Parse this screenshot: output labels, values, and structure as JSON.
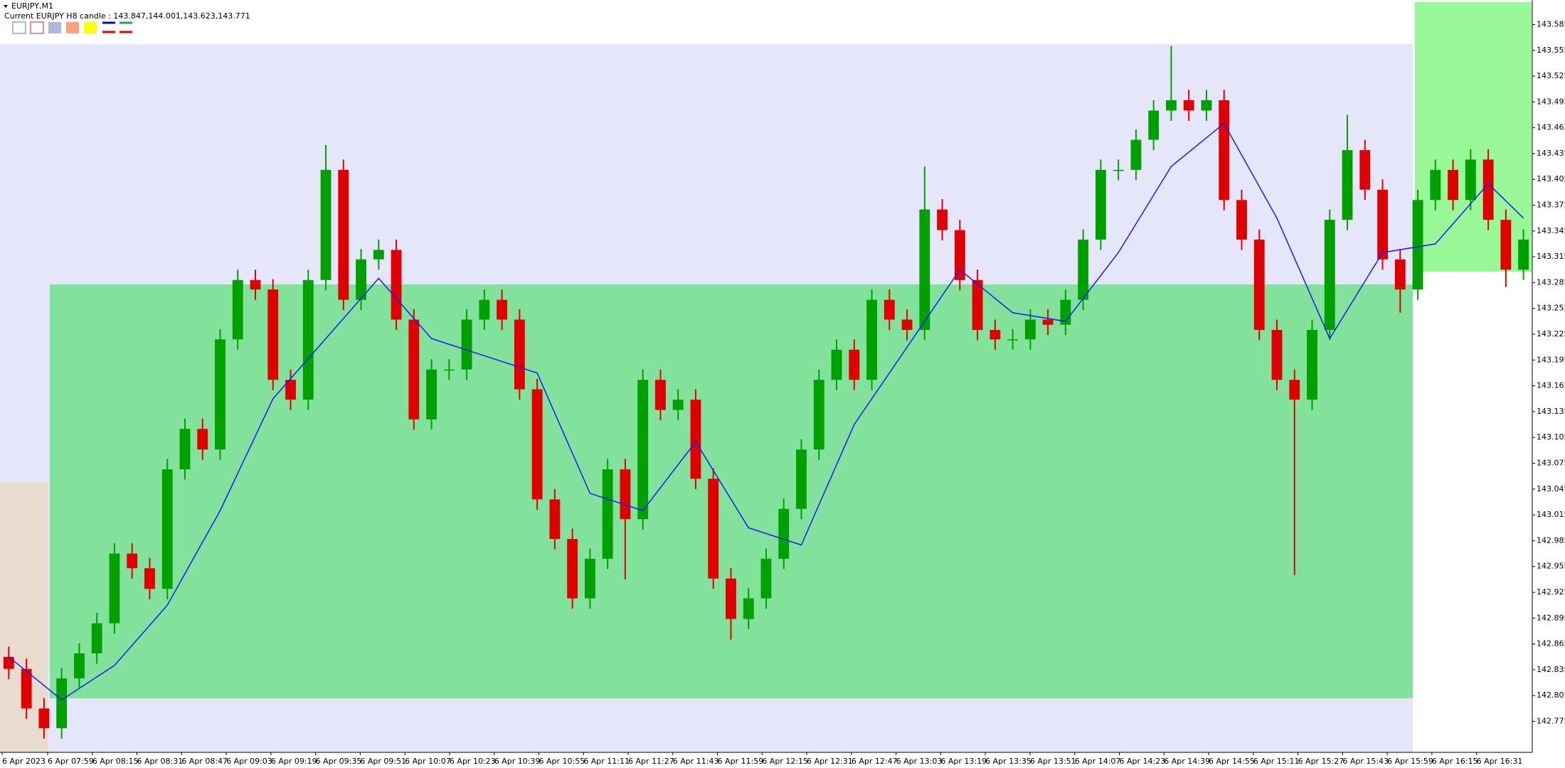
{
  "chart_data": {
    "type": "candlestick",
    "title": "EURJPY,M1",
    "subtitle": "Current EURJPY H8 candle : 143.847,144.001,143.623,143.771",
    "categories": [
      "6 Apr 2023",
      "6 Apr 07:59",
      "6 Apr 08:15",
      "6 Apr 08:31",
      "6 Apr 08:47",
      "6 Apr 09:03",
      "6 Apr 09:19",
      "6 Apr 09:35",
      "6 Apr 09:51",
      "6 Apr 10:07",
      "6 Apr 10:23",
      "6 Apr 10:39",
      "6 Apr 10:55",
      "6 Apr 11:11",
      "6 Apr 11:27",
      "6 Apr 11:43",
      "6 Apr 11:59",
      "6 Apr 12:15",
      "6 Apr 12:31",
      "6 Apr 12:47",
      "6 Apr 13:03",
      "6 Apr 13:19",
      "6 Apr 13:35",
      "6 Apr 13:51",
      "6 Apr 14:07",
      "6 Apr 14:23",
      "6 Apr 14:39",
      "6 Apr 14:55",
      "6 Apr 15:11",
      "6 Apr 15:27",
      "6 Apr 15:43",
      "6 Apr 15:59",
      "6 Apr 16:15",
      "6 Apr 16:31"
    ],
    "open": [
      142.85,
      142.836,
      142.79,
      142.767,
      142.825,
      142.854,
      142.889,
      142.97,
      142.953,
      142.929,
      143.068,
      143.115,
      143.091,
      143.219,
      143.288,
      143.277,
      143.172,
      143.149,
      143.288,
      143.416,
      143.265,
      143.312,
      143.323,
      143.242,
      143.126,
      143.184,
      143.184,
      143.242,
      143.265,
      143.242,
      143.161,
      143.033,
      142.987,
      142.918,
      142.964,
      143.068,
      143.01,
      143.172,
      143.137,
      143.149,
      143.057,
      142.941,
      142.894,
      142.918,
      142.964,
      143.022,
      143.091,
      143.172,
      143.207,
      143.172,
      143.265,
      143.242,
      143.23,
      143.37,
      143.346,
      143.288,
      143.23,
      143.219,
      143.219,
      143.242,
      143.236,
      143.265,
      143.335,
      143.416,
      143.416,
      143.451,
      143.485,
      143.497,
      143.485,
      143.497,
      143.381,
      143.335,
      143.23,
      143.172,
      143.149,
      143.23,
      143.358,
      143.439,
      143.393,
      143.312,
      143.277,
      143.381,
      143.416,
      143.381,
      143.428,
      143.358,
      143.3
    ],
    "high": [
      142.862,
      142.848,
      142.802,
      142.837,
      142.866,
      142.901,
      142.982,
      142.982,
      142.965,
      143.08,
      143.127,
      143.127,
      143.231,
      143.3,
      143.3,
      143.289,
      143.184,
      143.3,
      143.445,
      143.428,
      143.324,
      143.335,
      143.335,
      143.254,
      143.196,
      143.196,
      143.254,
      143.277,
      143.277,
      143.254,
      143.173,
      143.045,
      142.999,
      142.976,
      143.08,
      143.08,
      143.184,
      143.184,
      143.161,
      143.161,
      143.069,
      142.953,
      142.93,
      142.976,
      143.034,
      143.103,
      143.184,
      143.219,
      143.219,
      143.277,
      143.277,
      143.254,
      143.42,
      143.382,
      143.358,
      143.3,
      143.242,
      143.231,
      143.254,
      143.254,
      143.277,
      143.347,
      143.428,
      143.428,
      143.463,
      143.497,
      143.56,
      143.509,
      143.509,
      143.509,
      143.393,
      143.347,
      143.242,
      143.184,
      143.242,
      143.37,
      143.48,
      143.451,
      143.405,
      143.324,
      143.393,
      143.428,
      143.428,
      143.44,
      143.44,
      143.37,
      143.347
    ],
    "low": [
      142.824,
      142.778,
      142.755,
      142.755,
      142.813,
      142.842,
      142.877,
      142.941,
      142.917,
      142.917,
      143.056,
      143.079,
      143.079,
      143.207,
      143.265,
      143.16,
      143.137,
      143.137,
      143.276,
      143.253,
      143.253,
      143.3,
      143.23,
      143.114,
      143.114,
      143.172,
      143.172,
      143.23,
      143.23,
      143.149,
      143.021,
      142.975,
      142.906,
      142.906,
      142.952,
      142.94,
      142.998,
      143.125,
      143.125,
      143.045,
      142.929,
      142.87,
      142.882,
      142.906,
      142.952,
      143.01,
      143.079,
      143.16,
      143.16,
      143.16,
      143.23,
      143.218,
      143.218,
      143.334,
      143.276,
      143.218,
      143.207,
      143.207,
      143.207,
      143.224,
      143.224,
      143.253,
      143.323,
      143.404,
      143.404,
      143.439,
      143.473,
      143.473,
      143.473,
      143.369,
      143.323,
      143.218,
      143.16,
      142.945,
      143.137,
      143.218,
      143.346,
      143.381,
      143.3,
      143.25,
      143.265,
      143.369,
      143.369,
      143.369,
      143.346,
      143.28,
      143.288
    ],
    "close": [
      142.836,
      142.79,
      142.767,
      142.825,
      142.854,
      142.889,
      142.97,
      142.953,
      142.929,
      143.068,
      143.115,
      143.091,
      143.219,
      143.288,
      143.277,
      143.172,
      143.149,
      143.288,
      143.416,
      143.265,
      143.312,
      143.323,
      143.242,
      143.126,
      143.184,
      143.184,
      143.242,
      143.265,
      143.242,
      143.161,
      143.033,
      142.987,
      142.918,
      142.964,
      143.068,
      143.01,
      143.172,
      143.137,
      143.149,
      143.057,
      142.941,
      142.894,
      142.918,
      142.964,
      143.022,
      143.091,
      143.172,
      143.207,
      143.172,
      143.265,
      143.242,
      143.23,
      143.37,
      143.346,
      143.288,
      143.23,
      143.219,
      143.219,
      143.242,
      143.236,
      143.265,
      143.335,
      143.416,
      143.416,
      143.451,
      143.485,
      143.497,
      143.485,
      143.497,
      143.381,
      143.335,
      143.23,
      143.172,
      143.149,
      143.23,
      143.358,
      143.439,
      143.393,
      143.312,
      143.277,
      143.381,
      143.416,
      143.381,
      143.428,
      143.358,
      143.3,
      143.335
    ],
    "up_color": "#00a000",
    "down_color": "#e00000",
    "ma": {
      "color": "#1a1aff",
      "x": [
        0,
        3,
        6,
        9,
        12,
        15,
        18,
        21,
        24,
        27,
        30,
        33,
        36,
        39,
        42,
        45,
        48,
        51,
        54,
        57,
        60,
        63,
        66,
        69,
        72,
        75,
        78,
        81,
        84,
        86
      ],
      "values": [
        142.85,
        142.8,
        142.84,
        142.91,
        143.02,
        143.15,
        143.22,
        143.29,
        143.22,
        143.2,
        143.18,
        143.04,
        143.02,
        143.1,
        143.0,
        142.98,
        143.12,
        143.21,
        143.3,
        143.25,
        143.24,
        143.32,
        143.42,
        143.47,
        143.36,
        143.22,
        143.32,
        143.33,
        143.4,
        143.36
      ]
    },
    "ylim": [
      142.739,
      143.611
    ],
    "yticks": [
      142.775,
      142.805,
      142.835,
      142.865,
      142.895,
      142.925,
      142.955,
      142.985,
      143.015,
      143.045,
      143.075,
      143.105,
      143.135,
      143.165,
      143.195,
      143.225,
      143.255,
      143.285,
      143.315,
      143.345,
      143.375,
      143.405,
      143.435,
      143.465,
      143.495,
      143.525,
      143.555,
      143.585
    ]
  }
}
